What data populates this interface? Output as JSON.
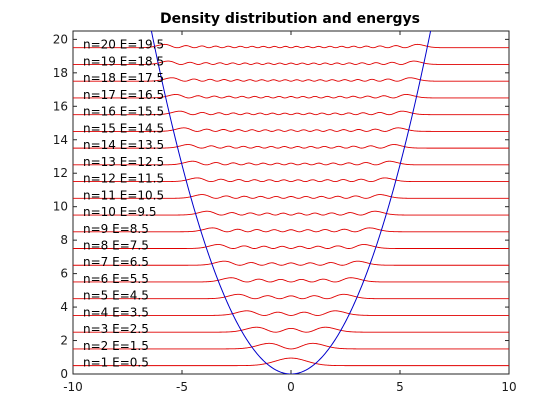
{
  "chart_data": {
    "type": "line",
    "title": "Density distribution and energys",
    "xlabel": "",
    "ylabel": "",
    "xlim": [
      -10,
      10
    ],
    "ylim": [
      0,
      20.5
    ],
    "x_ticks": [
      -10,
      -5,
      0,
      5,
      10
    ],
    "y_ticks": [
      0,
      2,
      4,
      6,
      8,
      10,
      12,
      14,
      16,
      18,
      20
    ],
    "x_tick_labels": [
      "-10",
      "-5",
      "0",
      "5",
      "10"
    ],
    "y_tick_labels": [
      "0",
      "2",
      "4",
      "6",
      "8",
      "10",
      "12",
      "14",
      "16",
      "18",
      "20"
    ],
    "grid": false,
    "colors": {
      "density": "#e00000",
      "potential": "#0000cc",
      "axes": "#262626"
    },
    "potential": {
      "name": "",
      "formula": "V(x) = x^2 / 2"
    },
    "levels": [
      {
        "n": 1,
        "E": 0.5,
        "label": "n=1 E=0.5"
      },
      {
        "n": 2,
        "E": 1.5,
        "label": "n=2 E=1.5"
      },
      {
        "n": 3,
        "E": 2.5,
        "label": "n=3 E=2.5"
      },
      {
        "n": 4,
        "E": 3.5,
        "label": "n=4 E=3.5"
      },
      {
        "n": 5,
        "E": 4.5,
        "label": "n=5 E=4.5"
      },
      {
        "n": 6,
        "E": 5.5,
        "label": "n=6 E=5.5"
      },
      {
        "n": 7,
        "E": 6.5,
        "label": "n=7 E=6.5"
      },
      {
        "n": 8,
        "E": 7.5,
        "label": "n=8 E=7.5"
      },
      {
        "n": 9,
        "E": 8.5,
        "label": "n=9 E=8.5"
      },
      {
        "n": 10,
        "E": 9.5,
        "label": "n=10 E=9.5"
      },
      {
        "n": 11,
        "E": 10.5,
        "label": "n=11 E=10.5"
      },
      {
        "n": 12,
        "E": 11.5,
        "label": "n=12 E=11.5"
      },
      {
        "n": 13,
        "E": 12.5,
        "label": "n=13 E=12.5"
      },
      {
        "n": 14,
        "E": 13.5,
        "label": "n=14 E=13.5"
      },
      {
        "n": 15,
        "E": 14.5,
        "label": "n=15 E=14.5"
      },
      {
        "n": 16,
        "E": 15.5,
        "label": "n=16 E=15.5"
      },
      {
        "n": 17,
        "E": 16.5,
        "label": "n=17 E=16.5"
      },
      {
        "n": 18,
        "E": 17.5,
        "label": "n=18 E=17.5"
      },
      {
        "n": 19,
        "E": 18.5,
        "label": "n=19 E=18.5"
      },
      {
        "n": 20,
        "E": 19.5,
        "label": "n=20 E=19.5"
      }
    ]
  }
}
